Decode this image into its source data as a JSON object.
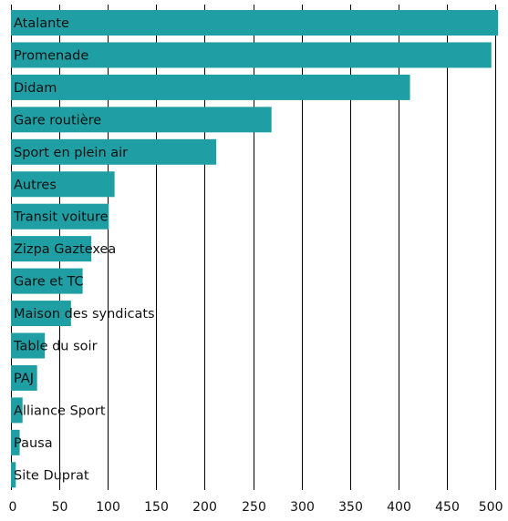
{
  "chart_data": {
    "type": "bar",
    "orientation": "horizontal",
    "title": "",
    "xlabel": "",
    "ylabel": "",
    "categories": [
      "Atalante",
      "Promenade",
      "Didam",
      "Gare routière",
      "Sport en plein air",
      "Autres",
      "Transit voiture",
      "Zizpa Gaztexea",
      "Gare et TC",
      "Maison des syndicats",
      "Table du soir",
      "PAJ",
      "Alliance Sport",
      "Pausa",
      "Site Duprat"
    ],
    "values": [
      503,
      496,
      412,
      269,
      212,
      107,
      101,
      83,
      74,
      62,
      35,
      27,
      12,
      9,
      5
    ],
    "xlim": [
      0,
      500
    ],
    "x_ticks": [
      0,
      50,
      100,
      150,
      200,
      250,
      300,
      350,
      400,
      450,
      500
    ],
    "x_tick_labels": [
      "0",
      "50",
      "100",
      "150",
      "200",
      "250",
      "300",
      "350",
      "400",
      "450",
      "500"
    ],
    "grid": true,
    "legend": "none",
    "colors": {
      "bar": "#1f9fa3",
      "grid": "#000000",
      "text": "#111111"
    }
  }
}
